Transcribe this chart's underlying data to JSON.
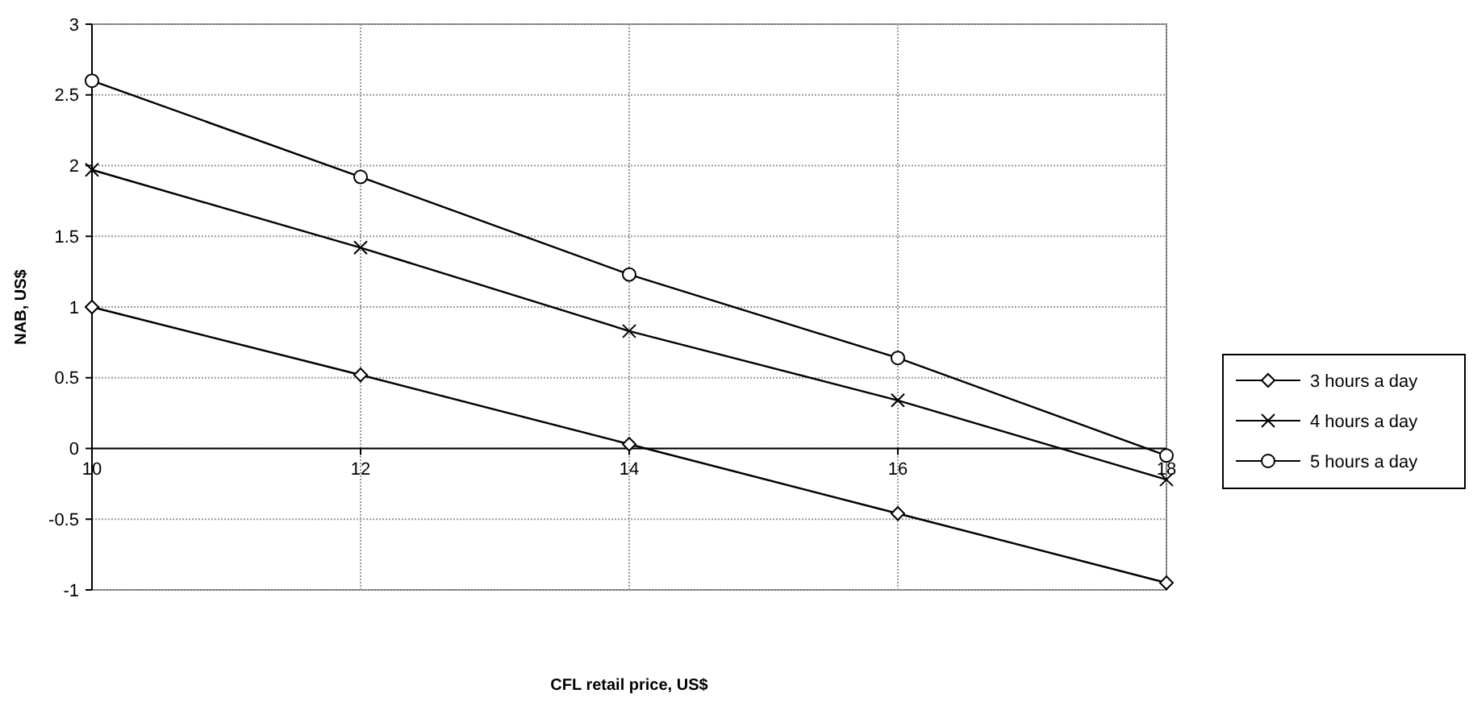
{
  "chart_data": {
    "type": "line",
    "xlabel": "CFL retail price, US$",
    "ylabel": "NAB, US$",
    "x": [
      10,
      12,
      14,
      16,
      18
    ],
    "series": [
      {
        "name": "3 hours a day",
        "color": "#000000",
        "marker": "diamond",
        "values": [
          1.0,
          0.52,
          0.03,
          -0.46,
          -0.95
        ]
      },
      {
        "name": "4 hours a day",
        "color": "#000000",
        "marker": "cross",
        "values": [
          1.97,
          1.42,
          0.83,
          0.34,
          -0.22
        ]
      },
      {
        "name": "5 hours a day",
        "color": "#000000",
        "marker": "circle",
        "values": [
          2.6,
          1.92,
          1.23,
          0.64,
          -0.05
        ]
      }
    ],
    "xlim": [
      10,
      18
    ],
    "xticks": [
      10,
      12,
      14,
      16,
      18
    ],
    "ylim": [
      -1,
      3
    ],
    "yticks": [
      -1,
      -0.5,
      0,
      0.5,
      1,
      1.5,
      2,
      2.5,
      3
    ],
    "grid": true,
    "legend": "right",
    "line_style": "solid"
  }
}
